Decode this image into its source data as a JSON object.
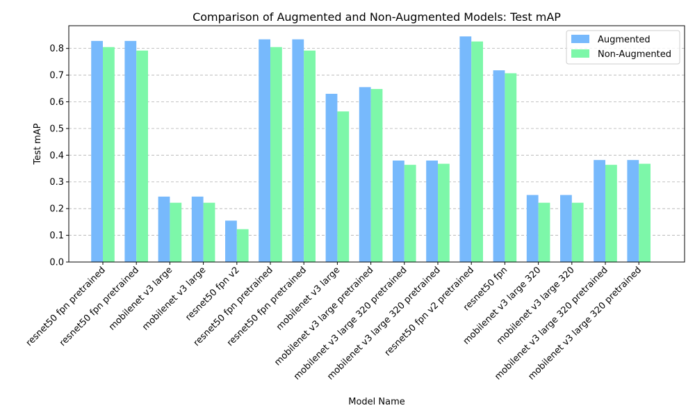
{
  "chart_data": {
    "type": "bar",
    "title": "Comparison of Augmented and Non-Augmented Models: Test mAP",
    "xlabel": "Model Name",
    "ylabel": "Test mAP",
    "ylim": [
      0,
      0.885
    ],
    "yticks": [
      "0.0",
      "0.1",
      "0.2",
      "0.3",
      "0.4",
      "0.5",
      "0.6",
      "0.7",
      "0.8"
    ],
    "grid": "horizontal-dashed",
    "legend_position": "top-right",
    "categories": [
      "resnet50 fpn pretrained",
      "resnet50 fpn pretrained",
      "mobilenet v3 large",
      "mobilenet v3 large",
      "resnet50 fpn v2",
      "resnet50 fpn pretrained",
      "resnet50 fpn pretrained",
      "mobilenet v3 large",
      "mobilenet v3 large pretrained",
      "mobilenet v3 large 320 pretrained",
      "mobilenet v3 large 320 pretrained",
      "resnet50 fpn v2 pretrained",
      "resnet50 fpn",
      "mobilenet v3 large 320",
      "mobilenet v3 large 320",
      "mobilenet v3 large 320 pretrained",
      "mobilenet v3 large 320 pretrained"
    ],
    "series": [
      {
        "name": "Augmented",
        "color": "#77b9fc",
        "values": [
          0.828,
          0.828,
          0.245,
          0.245,
          0.155,
          0.834,
          0.834,
          0.63,
          0.655,
          0.38,
          0.38,
          0.845,
          0.718,
          0.251,
          0.251,
          0.382,
          0.382
        ]
      },
      {
        "name": "Non-Augmented",
        "color": "#7df7a9",
        "values": [
          0.805,
          0.792,
          0.222,
          0.222,
          0.123,
          0.805,
          0.792,
          0.564,
          0.648,
          0.364,
          0.368,
          0.826,
          0.707,
          0.222,
          0.222,
          0.364,
          0.368
        ]
      }
    ]
  }
}
